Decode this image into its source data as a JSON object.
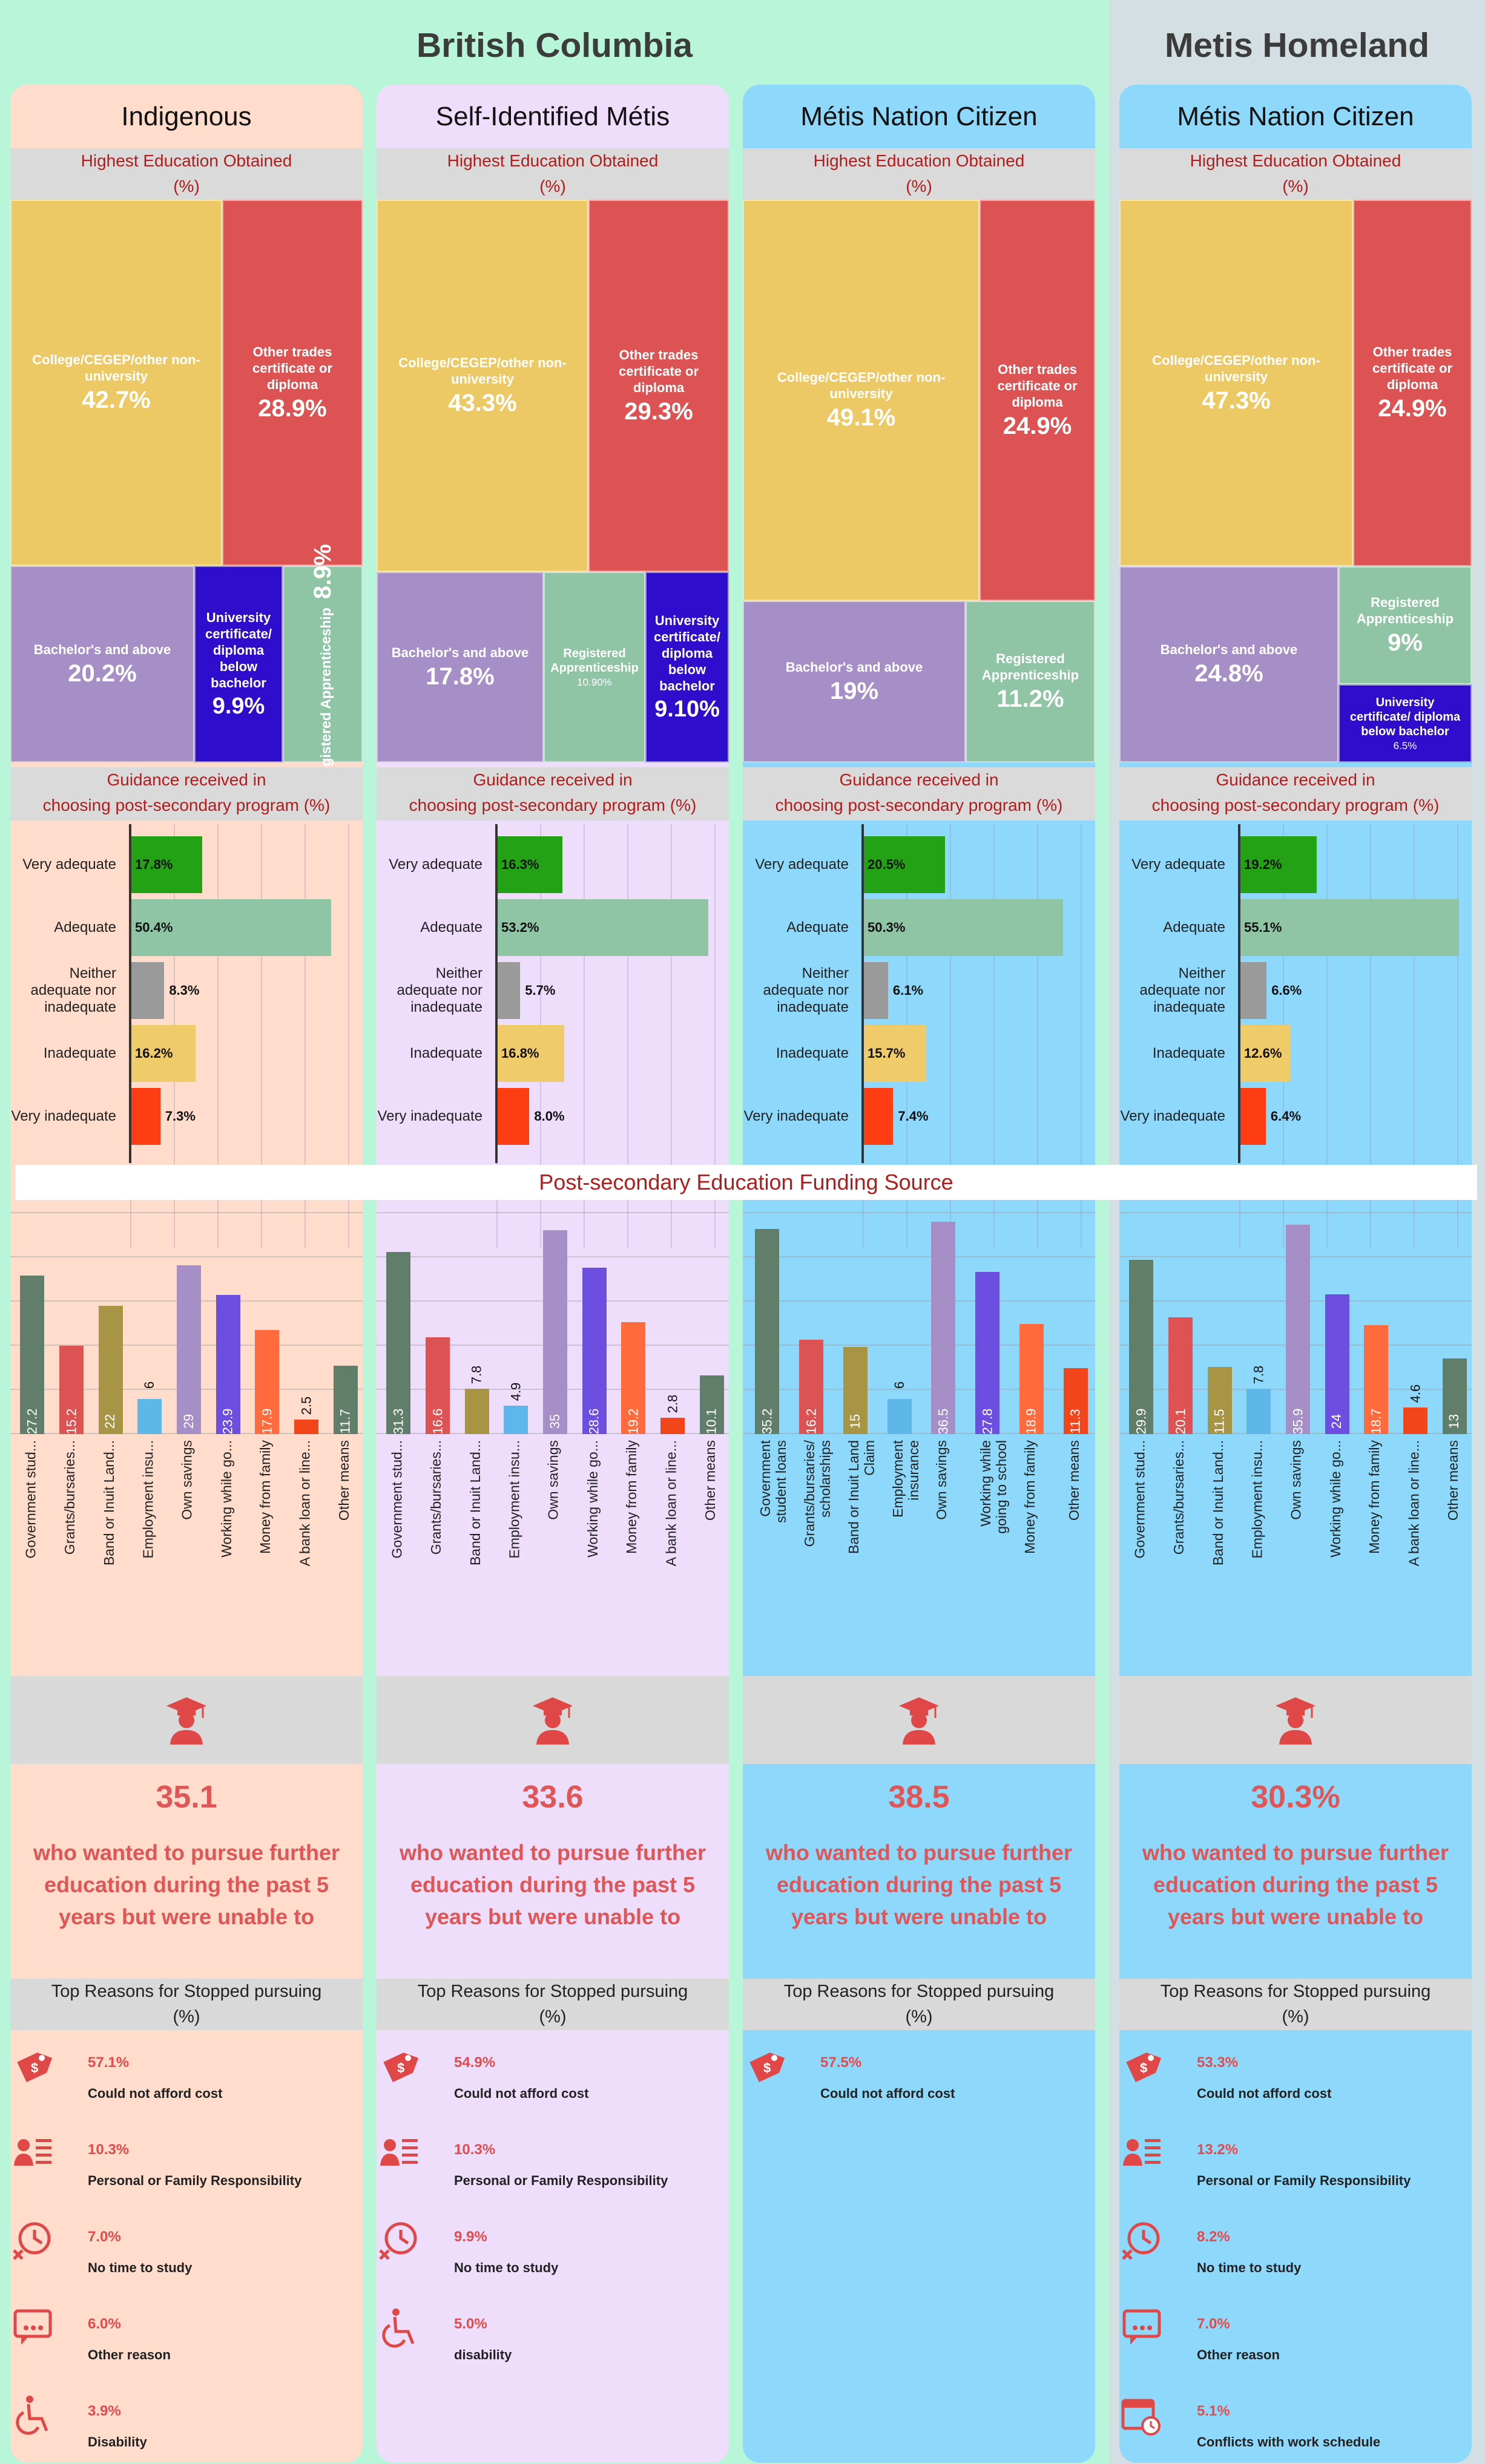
{
  "regions": [
    {
      "title": "British Columbia"
    },
    {
      "title": "Metis Homeland"
    }
  ],
  "banner": "Post-secondary Education Funding Source",
  "colors": {
    "college": "#ecc965",
    "trades": "#dd5353",
    "bachelor": "#a68ec6",
    "univ_below": "#2e0dcc",
    "apprentice": "#8fc4a5",
    "very_adequate": "#24a215",
    "adequate": "#8fc4a5",
    "neither": "#9a9a9a",
    "inadequate": "#efcb6a",
    "very_inadequate": "#ff3d12",
    "fund": [
      "#617e6a",
      "#dd5353",
      "#a89445",
      "#5fb7e9",
      "#a68ec6",
      "#6c4fe0",
      "#ff6b3d",
      "#f2451a",
      "#617e6a"
    ]
  },
  "columns": [
    {
      "title": "Indigenous",
      "bg": "#ffdccc",
      "edu_title": "Highest Education Obtained",
      "edu_unit": "(%)",
      "guid_title_1": "Guidance received in",
      "guid_title_2": "choosing post-secondary program (%)",
      "tiles": {
        "college": {
          "label": "College/CEGEP/other non-university",
          "value": "42.7%"
        },
        "trades": {
          "label": "Other trades certificate or diploma",
          "value": "28.9%"
        },
        "bachelor": {
          "label": "Bachelor's and above",
          "value": "20.2%"
        },
        "univ_below": {
          "label": "University certificate/ diploma below bachelor",
          "value": "9.9%"
        },
        "apprentice": {
          "label": "Registered Apprenticeship",
          "value": "8.9%"
        }
      },
      "guidance": [
        {
          "label": "Very adequate",
          "value": 17.8,
          "text": "17.8%"
        },
        {
          "label": "Adequate",
          "value": 50.4,
          "text": "50.4%"
        },
        {
          "label": "Neither adequate nor inadequate",
          "value": 8.3,
          "text": "8.3%"
        },
        {
          "label": "Inadequate",
          "value": 16.2,
          "text": "16.2%"
        },
        {
          "label": "Very inadequate",
          "value": 7.3,
          "text": "7.3%"
        }
      ],
      "funding": {
        "categories": [
          "Government stud...",
          "Grants/bursaries...",
          "Band or Inuit Land...",
          "Employment insu...",
          "Own savings",
          "Working while go...",
          "Money from family",
          "A bank loan or line...",
          "Other means"
        ],
        "values": [
          27.2,
          15.2,
          22,
          6,
          29,
          23.9,
          17.9,
          2.5,
          11.7
        ]
      },
      "pct_unable": "35.1",
      "unable_text": "who wanted to pursue further education during the past 5 years but were unable to",
      "reasons_title_1": "Top Reasons for Stopped pursuing",
      "reasons_title_2": "(%)",
      "reasons": [
        {
          "icon": "price-tag-icon",
          "pct": "57.1%",
          "text": "Could not afford cost"
        },
        {
          "icon": "family-responsibility-icon",
          "pct": "10.3%",
          "text": "Personal or Family Responsibility"
        },
        {
          "icon": "clock-x-icon",
          "pct": "7.0%",
          "text": "No time to study"
        },
        {
          "icon": "chat-dots-icon",
          "pct": "6.0%",
          "text": "Other reason"
        },
        {
          "icon": "wheelchair-icon",
          "pct": "3.9%",
          "text": "Disability"
        }
      ]
    },
    {
      "title": "Self-Identified Métis",
      "bg": "#eedefb",
      "edu_title": "Highest Education Obtained",
      "edu_unit": "(%)",
      "guid_title_1": "Guidance received in",
      "guid_title_2": "choosing post-secondary program (%)",
      "tiles": {
        "college": {
          "label": "College/CEGEP/other non-university",
          "value": "43.3%"
        },
        "trades": {
          "label": "Other trades certificate or diploma",
          "value": "29.3%"
        },
        "bachelor": {
          "label": "Bachelor's and above",
          "value": "17.8%"
        },
        "apprentice": {
          "label": "Registered Apprenticeship",
          "value": "10.90%"
        },
        "univ_below": {
          "label": "University certificate/ diploma below bachelor",
          "value": "9.10%"
        }
      },
      "guidance": [
        {
          "label": "Very adequate",
          "value": 16.3,
          "text": "16.3%"
        },
        {
          "label": "Adequate",
          "value": 53.2,
          "text": "53.2%"
        },
        {
          "label": "Neither adequate nor inadequate",
          "value": 5.7,
          "text": "5.7%"
        },
        {
          "label": "Inadequate",
          "value": 16.8,
          "text": "16.8%"
        },
        {
          "label": "Very inadequate",
          "value": 8.0,
          "text": "8.0%"
        }
      ],
      "funding": {
        "categories": [
          "Government stud...",
          "Grants/bursaries...",
          "Band or Inuit Land...",
          "Employment insu...",
          "Own savings",
          "Working while go...",
          "Money from family",
          "A bank loan or line...",
          "Other means"
        ],
        "values": [
          31.3,
          16.6,
          7.8,
          4.9,
          35,
          28.6,
          19.2,
          2.8,
          10.1
        ]
      },
      "pct_unable": "33.6",
      "unable_text": "who wanted to pursue further education during the past 5 years but were unable to",
      "reasons_title_1": "Top Reasons for Stopped pursuing",
      "reasons_title_2": "(%)",
      "reasons": [
        {
          "icon": "price-tag-icon",
          "pct": "54.9%",
          "text": "Could not afford cost"
        },
        {
          "icon": "family-responsibility-icon",
          "pct": "10.3%",
          "text": "Personal or Family Responsibility"
        },
        {
          "icon": "clock-x-icon",
          "pct": "9.9%",
          "text": "No time to study"
        },
        {
          "icon": "wheelchair-icon",
          "pct": "5.0%",
          "text": "disability"
        }
      ]
    },
    {
      "title": "Métis Nation Citizen",
      "bg": "#8ed8fb",
      "edu_title": "Highest Education Obtained",
      "edu_unit": "(%)",
      "guid_title_1": "Guidance received in",
      "guid_title_2": "choosing post-secondary program (%)",
      "tiles": {
        "college": {
          "label": "College/CEGEP/other non-university",
          "value": "49.1%"
        },
        "trades": {
          "label": "Other trades certificate or diploma",
          "value": "24.9%"
        },
        "bachelor": {
          "label": "Bachelor's and above",
          "value": "19%"
        },
        "apprentice": {
          "label": "Registered Apprenticeship",
          "value": "11.2%"
        }
      },
      "guidance": [
        {
          "label": "Very adequate",
          "value": 20.5,
          "text": "20.5%"
        },
        {
          "label": "Adequate",
          "value": 50.3,
          "text": "50.3%"
        },
        {
          "label": "Neither adequate nor inadequate",
          "value": 6.1,
          "text": "6.1%"
        },
        {
          "label": "Inadequate",
          "value": 15.7,
          "text": "15.7%"
        },
        {
          "label": "Very inadequate",
          "value": 7.4,
          "text": "7.4%"
        }
      ],
      "funding": {
        "categories": [
          "Government student loans",
          "Grants/bursaries/ scholarships",
          "Band or Inuit Land Claim",
          "Employment insurance",
          "Own savings",
          "Working while going to school",
          "Money from family",
          "Other means"
        ],
        "values": [
          35.2,
          16.2,
          15,
          6,
          36.5,
          27.8,
          18.9,
          11.3
        ]
      },
      "pct_unable": "38.5",
      "unable_text": "who wanted to pursue further education during the past 5 years but were unable to",
      "reasons_title_1": "Top Reasons for Stopped pursuing",
      "reasons_title_2": "(%)",
      "reasons": [
        {
          "icon": "price-tag-icon",
          "pct": "57.5%",
          "text": "Could not afford cost"
        }
      ]
    },
    {
      "title": "Métis Nation Citizen",
      "bg": "#8ed8fb",
      "edu_title": "Highest Education Obtained",
      "edu_unit": "(%)",
      "guid_title_1": "Guidance received in",
      "guid_title_2": "choosing post-secondary program (%)",
      "tiles": {
        "college": {
          "label": "College/CEGEP/other non-university",
          "value": "47.3%"
        },
        "trades": {
          "label": "Other trades certificate or diploma",
          "value": "24.9%"
        },
        "bachelor": {
          "label": "Bachelor's and above",
          "value": "24.8%"
        },
        "apprentice": {
          "label": "Registered Apprenticeship",
          "value": "9%"
        },
        "univ_below": {
          "label": "University certificate/ diploma below bachelor",
          "value": "6.5%"
        }
      },
      "guidance": [
        {
          "label": "Very adequate",
          "value": 19.2,
          "text": "19.2%"
        },
        {
          "label": "Adequate",
          "value": 55.1,
          "text": "55.1%"
        },
        {
          "label": "Neither adequate nor inadequate",
          "value": 6.6,
          "text": "6.6%"
        },
        {
          "label": "Inadequate",
          "value": 12.6,
          "text": "12.6%"
        },
        {
          "label": "Very inadequate",
          "value": 6.4,
          "text": "6.4%"
        }
      ],
      "funding": {
        "categories": [
          "Government stud...",
          "Grants/bursaries...",
          "Band or Inuit Land...",
          "Employment insu...",
          "Own savings",
          "Working while go...",
          "Money from family",
          "A bank loan or line...",
          "Other means"
        ],
        "values": [
          29.9,
          20.1,
          11.5,
          7.8,
          35.9,
          24,
          18.7,
          4.6,
          13
        ]
      },
      "pct_unable": "30.3%",
      "unable_text": "who wanted to pursue further education during the past 5 years but were unable to",
      "reasons_title_1": "Top Reasons for Stopped pursuing",
      "reasons_title_2": "(%)",
      "reasons": [
        {
          "icon": "price-tag-icon",
          "pct": "53.3%",
          "text": "Could not afford cost"
        },
        {
          "icon": "family-responsibility-icon",
          "pct": "13.2%",
          "text": "Personal or Family Responsibility"
        },
        {
          "icon": "clock-x-icon",
          "pct": "8.2%",
          "text": "No time to study"
        },
        {
          "icon": "chat-dots-icon",
          "pct": "7.0%",
          "text": "Other reason"
        },
        {
          "icon": "calendar-clock-icon",
          "pct": "5.1%",
          "text": "Conflicts with work schedule"
        }
      ]
    }
  ],
  "chart_data": [
    {
      "type": "treemap",
      "title": "Highest Education Obtained",
      "subtitle": "(%)",
      "group": "Indigenous",
      "categories": [
        "College/CEGEP/other non-university",
        "Other trades certificate or diploma",
        "Bachelor's and above",
        "University certificate/ diploma below bachelor",
        "Registered Apprenticeship"
      ],
      "values": [
        42.7,
        28.9,
        20.2,
        9.9,
        8.9
      ]
    },
    {
      "type": "treemap",
      "title": "Highest Education Obtained",
      "subtitle": "(%)",
      "group": "Self-Identified Métis",
      "categories": [
        "College/CEGEP/other non-university",
        "Other trades certificate or diploma",
        "Bachelor's and above",
        "Registered Apprenticeship",
        "University certificate/ diploma below bachelor"
      ],
      "values": [
        43.3,
        29.3,
        17.8,
        10.9,
        9.1
      ]
    },
    {
      "type": "treemap",
      "title": "Highest Education Obtained",
      "subtitle": "(%)",
      "group": "Métis Nation Citizen",
      "categories": [
        "College/CEGEP/other non-university",
        "Other trades certificate or diploma",
        "Bachelor's and above",
        "Registered Apprenticeship"
      ],
      "values": [
        49.1,
        24.9,
        19,
        11.2
      ]
    },
    {
      "type": "treemap",
      "title": "Highest Education Obtained",
      "subtitle": "(%)",
      "group": "Métis Nation Citizen",
      "categories": [
        "College/CEGEP/other non-university",
        "Other trades certificate or diploma",
        "Bachelor's and above",
        "Registered Apprenticeship",
        "University certificate/ diploma below bachelor"
      ],
      "values": [
        47.3,
        24.9,
        24.8,
        9,
        6.5
      ]
    },
    {
      "type": "bar",
      "orientation": "horizontal",
      "title": "Guidance received in choosing post-secondary program (%)",
      "group": "Indigenous",
      "categories": [
        "Very adequate",
        "Adequate",
        "Neither adequate nor inadequate",
        "Inadequate",
        "Very inadequate"
      ],
      "values": [
        17.8,
        50.4,
        8.3,
        16.2,
        7.3
      ]
    },
    {
      "type": "bar",
      "orientation": "horizontal",
      "title": "Guidance received in choosing post-secondary program (%)",
      "group": "Self-Identified Métis",
      "categories": [
        "Very adequate",
        "Adequate",
        "Neither adequate nor inadequate",
        "Inadequate",
        "Very inadequate"
      ],
      "values": [
        16.3,
        53.2,
        5.7,
        16.8,
        8.0
      ]
    },
    {
      "type": "bar",
      "orientation": "horizontal",
      "title": "Guidance received in choosing post-secondary program (%)",
      "group": "Métis Nation Citizen",
      "categories": [
        "Very adequate",
        "Adequate",
        "Neither adequate nor inadequate",
        "Inadequate",
        "Very inadequate"
      ],
      "values": [
        20.5,
        50.3,
        6.1,
        15.7,
        7.4
      ]
    },
    {
      "type": "bar",
      "orientation": "horizontal",
      "title": "Guidance received in choosing post-secondary program (%)",
      "group": "Métis Nation Citizen",
      "categories": [
        "Very adequate",
        "Adequate",
        "Neither adequate nor inadequate",
        "Inadequate",
        "Very inadequate"
      ],
      "values": [
        19.2,
        55.1,
        6.6,
        12.6,
        6.4
      ]
    },
    {
      "type": "bar",
      "title": "Post-secondary Education Funding Source",
      "group": "Indigenous",
      "categories": [
        "Government stud...",
        "Grants/bursaries...",
        "Band or Inuit Land...",
        "Employment insu...",
        "Own savings",
        "Working while go...",
        "Money from family",
        "A bank loan or line...",
        "Other means"
      ],
      "values": [
        27.2,
        15.2,
        22,
        6,
        29,
        23.9,
        17.9,
        2.5,
        11.7
      ]
    },
    {
      "type": "bar",
      "title": "Post-secondary Education Funding Source",
      "group": "Self-Identified Métis",
      "categories": [
        "Government stud...",
        "Grants/bursaries...",
        "Band or Inuit Land...",
        "Employment insu...",
        "Own savings",
        "Working while go...",
        "Money from family",
        "A bank loan or line...",
        "Other means"
      ],
      "values": [
        31.3,
        16.6,
        7.8,
        4.9,
        35,
        28.6,
        19.2,
        2.8,
        10.1
      ]
    },
    {
      "type": "bar",
      "title": "Post-secondary Education Funding Source",
      "group": "Métis Nation Citizen",
      "categories": [
        "Government student loans",
        "Grants/bursaries/ scholarships",
        "Band or Inuit Land Claim",
        "Employment insurance",
        "Own savings",
        "Working while going to school",
        "Money from family",
        "Other means"
      ],
      "values": [
        35.2,
        16.2,
        15,
        6,
        36.5,
        27.8,
        18.9,
        11.3
      ]
    },
    {
      "type": "bar",
      "title": "Post-secondary Education Funding Source",
      "group": "Métis Nation Citizen",
      "categories": [
        "Government stud...",
        "Grants/bursaries...",
        "Band or Inuit Land...",
        "Employment insu...",
        "Own savings",
        "Working while go...",
        "Money from family",
        "A bank loan or line...",
        "Other means"
      ],
      "values": [
        29.9,
        20.1,
        11.5,
        7.8,
        35.9,
        24,
        18.7,
        4.6,
        13
      ]
    }
  ]
}
